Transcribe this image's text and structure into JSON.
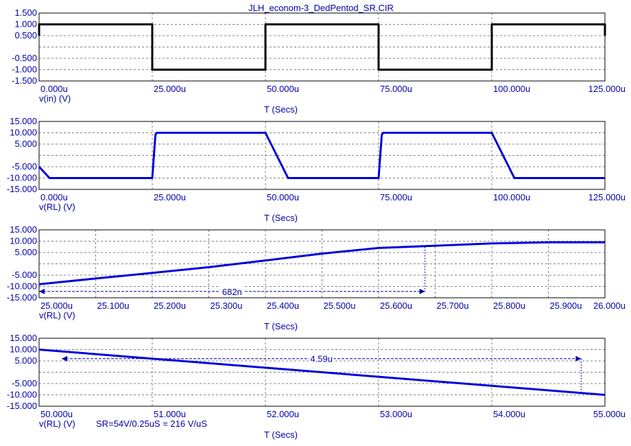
{
  "window": {
    "title": "JLH_econom-3_DedPentod_SR.CIR"
  },
  "colors": {
    "trace_input": "#000000",
    "trace_output": "#0000dd",
    "text_blue": "#0000aa",
    "grid": "#808080",
    "frame": "#000000"
  },
  "chart_data": [
    {
      "type": "line",
      "xlabel": "T (Secs)",
      "ylabel": "v(in) (V)",
      "xlim": [
        0,
        125
      ],
      "ylim": [
        -1.5,
        1.5
      ],
      "x_ticks": [
        0,
        25,
        50,
        75,
        100,
        125
      ],
      "x_tick_labels": [
        "0.000u",
        "25.000u",
        "50.000u",
        "75.000u",
        "100.000u",
        "125.000u"
      ],
      "y_ticks": [
        1.5,
        1,
        0.5,
        -0.5,
        -1,
        -1.5
      ],
      "y_tick_labels": [
        "1.500",
        "1.000",
        "0.500",
        "-0.500",
        "-1.000",
        "-1.500"
      ],
      "y_grid": [
        1.5,
        1,
        0.5,
        0,
        -0.5,
        -1,
        -1.5
      ],
      "series": [
        {
          "color": "#000000",
          "x": [
            0,
            0,
            25,
            25,
            50,
            50,
            75,
            75,
            100,
            100,
            125,
            125
          ],
          "y": [
            0.5,
            1,
            1,
            -1,
            -1,
            1,
            1,
            -1,
            -1,
            1,
            1,
            0.5
          ]
        }
      ],
      "annotations": []
    },
    {
      "type": "line",
      "xlabel": "T (Secs)",
      "ylabel": "v(RL) (V)",
      "xlim": [
        0,
        125
      ],
      "ylim": [
        -15,
        15
      ],
      "x_ticks": [
        0,
        25,
        50,
        75,
        100,
        125
      ],
      "x_tick_labels": [
        "0.000u",
        "25.000u",
        "50.000u",
        "75.000u",
        "100.000u",
        "125.000u"
      ],
      "y_ticks": [
        15,
        10,
        5,
        -5,
        -10,
        -15
      ],
      "y_tick_labels": [
        "15.000",
        "10.000",
        "5.000",
        "-5.000",
        "-10.000",
        "-15.000"
      ],
      "y_grid": [
        15,
        10,
        5,
        0,
        -5,
        -10,
        -15
      ],
      "series": [
        {
          "color": "#0000dd",
          "x": [
            0,
            2.3,
            25,
            25.7,
            26,
            50,
            55,
            75,
            75.7,
            76,
            100,
            105,
            125
          ],
          "y": [
            -5,
            -10,
            -10,
            9,
            10,
            10,
            -10,
            -10,
            9,
            10,
            10,
            -10,
            -10
          ]
        }
      ],
      "annotations": []
    },
    {
      "type": "line",
      "xlabel": "T (Secs)",
      "ylabel": "v(RL) (V)",
      "xlim": [
        25,
        26
      ],
      "ylim": [
        -15,
        15
      ],
      "x_ticks": [
        25,
        25.1,
        25.2,
        25.3,
        25.4,
        25.5,
        25.6,
        25.7,
        25.8,
        25.9,
        26
      ],
      "x_tick_labels": [
        "25.000u",
        "25.100u",
        "25.200u",
        "25.300u",
        "25.400u",
        "25.500u",
        "25.600u",
        "25.700u",
        "25.800u",
        "25.900u",
        "26.000u"
      ],
      "y_ticks": [
        15,
        10,
        5,
        -5,
        -10,
        -15
      ],
      "y_tick_labels": [
        "15.000",
        "10.000",
        "5.000",
        "-5.000",
        "-10.000",
        "-15.000"
      ],
      "y_grid": [
        15,
        10,
        5,
        0,
        -5,
        -10,
        -15
      ],
      "series": [
        {
          "color": "#0000dd",
          "x": [
            25,
            25.1,
            25.2,
            25.3,
            25.4,
            25.5,
            25.6,
            25.7,
            25.8,
            25.9,
            26
          ],
          "y": [
            -9,
            -6.5,
            -4,
            -1.5,
            1.5,
            4.5,
            7,
            8,
            9,
            9.5,
            9.5
          ]
        }
      ],
      "annotations": [
        {
          "label": "682n",
          "x1": 25.0,
          "x2": 25.682,
          "y": -12.2,
          "drop_top": 7.5
        }
      ]
    },
    {
      "type": "line",
      "xlabel": "T (Secs)",
      "ylabel": "v(RL) (V)",
      "xlim": [
        50,
        55
      ],
      "ylim": [
        -15,
        15
      ],
      "x_ticks": [
        50,
        51,
        52,
        53,
        54,
        55
      ],
      "x_tick_labels": [
        "50.000u",
        "51.000u",
        "52.000u",
        "53.000u",
        "54.000u",
        "55.000u"
      ],
      "y_ticks": [
        15,
        10,
        5,
        -5,
        -10,
        -15
      ],
      "y_tick_labels": [
        "15.000",
        "10.000",
        "5.000",
        "-5.000",
        "-10.000",
        "-15.000"
      ],
      "y_grid": [
        15,
        10,
        5,
        0,
        -5,
        -10,
        -15
      ],
      "series": [
        {
          "color": "#0000dd",
          "x": [
            50,
            51,
            52,
            53,
            54,
            55
          ],
          "y": [
            10,
            6,
            2,
            -2,
            -6,
            -10
          ]
        }
      ],
      "annotations": [
        {
          "label": "4.59u",
          "x1": 50.2,
          "x2": 54.79,
          "y": 6,
          "drop_bottom": -9.2
        }
      ],
      "note": "SR=54V/0.25uS = 216 V/uS"
    }
  ]
}
